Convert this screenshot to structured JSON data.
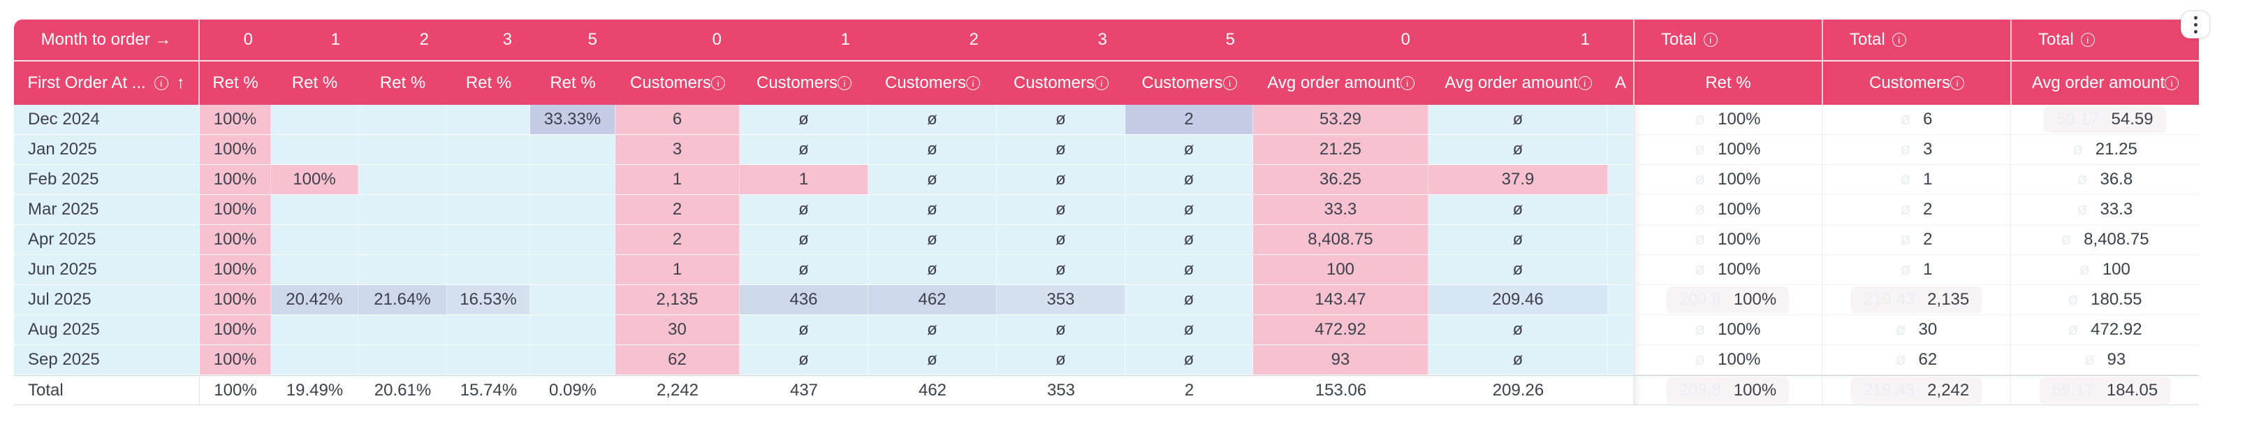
{
  "colors": {
    "accent": "#e8466e",
    "cell_pink": "#f8c1cf",
    "cell_cyan": "#e0f2f9",
    "cell_lavender": "#c5cce5",
    "cell_steel_blue": "#cdd9ea",
    "text": "#3d3f4a",
    "ghost_text": "#ebedf2"
  },
  "menu": {
    "icon": "kebab-menu-icon"
  },
  "header": {
    "corner_top": "Month to order →",
    "corner_bottom": "First Order At ...",
    "corner_sort": "↑",
    "columns": [
      {
        "month": "0",
        "metric": "Ret %",
        "info": false
      },
      {
        "month": "1",
        "metric": "Ret %",
        "info": false
      },
      {
        "month": "2",
        "metric": "Ret %",
        "info": false
      },
      {
        "month": "3",
        "metric": "Ret %",
        "info": false
      },
      {
        "month": "5",
        "metric": "Ret %",
        "info": false
      },
      {
        "month": "0",
        "metric": "Customers",
        "info": true
      },
      {
        "month": "1",
        "metric": "Customers",
        "info": true
      },
      {
        "month": "2",
        "metric": "Customers",
        "info": true
      },
      {
        "month": "3",
        "metric": "Customers",
        "info": true
      },
      {
        "month": "5",
        "metric": "Customers",
        "info": true
      },
      {
        "month": "0",
        "metric": "Avg order amount",
        "info": true
      },
      {
        "month": "1",
        "metric": "Avg order amount",
        "info": true
      },
      {
        "month": "",
        "metric": "A",
        "info": false
      }
    ],
    "pinned": [
      {
        "group": "Total",
        "group_info": true,
        "metric": "Ret %",
        "info": false
      },
      {
        "group": "Total",
        "group_info": true,
        "metric": "Customers",
        "info": true
      },
      {
        "group": "Total",
        "group_info": true,
        "metric": "Avg order amount",
        "info": true
      }
    ]
  },
  "rows": [
    {
      "label": "Dec 2024",
      "total_row": false,
      "cells": [
        {
          "v": "100%",
          "bg": "pink"
        },
        {
          "v": "",
          "bg": "cyan"
        },
        {
          "v": "",
          "bg": "cyan"
        },
        {
          "v": "",
          "bg": "cyan"
        },
        {
          "v": "33.33%",
          "bg": "lav"
        },
        {
          "v": "6",
          "bg": "pink"
        },
        {
          "v": "ø",
          "bg": "cyan"
        },
        {
          "v": "ø",
          "bg": "cyan"
        },
        {
          "v": "ø",
          "bg": "cyan"
        },
        {
          "v": "2",
          "bg": "lav"
        },
        {
          "v": "53.29",
          "bg": "pink"
        },
        {
          "v": "ø",
          "bg": "cyan"
        },
        {
          "v": "",
          "bg": "cyan"
        }
      ],
      "pinned": [
        {
          "ghost": "ø",
          "v": "100%",
          "flash": false
        },
        {
          "ghost": "ø",
          "v": "6",
          "flash": false
        },
        {
          "ghost": "59.17",
          "v": "54.59",
          "flash": true
        }
      ]
    },
    {
      "label": "Jan 2025",
      "total_row": false,
      "cells": [
        {
          "v": "100%",
          "bg": "pink"
        },
        {
          "v": "",
          "bg": "cyan"
        },
        {
          "v": "",
          "bg": "cyan"
        },
        {
          "v": "",
          "bg": "cyan"
        },
        {
          "v": "",
          "bg": "cyan"
        },
        {
          "v": "3",
          "bg": "pink"
        },
        {
          "v": "ø",
          "bg": "cyan"
        },
        {
          "v": "ø",
          "bg": "cyan"
        },
        {
          "v": "ø",
          "bg": "cyan"
        },
        {
          "v": "ø",
          "bg": "cyan"
        },
        {
          "v": "21.25",
          "bg": "pink"
        },
        {
          "v": "ø",
          "bg": "cyan"
        },
        {
          "v": "",
          "bg": "cyan"
        }
      ],
      "pinned": [
        {
          "ghost": "ø",
          "v": "100%",
          "flash": false
        },
        {
          "ghost": "ø",
          "v": "3",
          "flash": false
        },
        {
          "ghost": "ø",
          "v": "21.25",
          "flash": false
        }
      ]
    },
    {
      "label": "Feb 2025",
      "total_row": false,
      "cells": [
        {
          "v": "100%",
          "bg": "pink"
        },
        {
          "v": "100%",
          "bg": "pink"
        },
        {
          "v": "",
          "bg": "cyan"
        },
        {
          "v": "",
          "bg": "cyan"
        },
        {
          "v": "",
          "bg": "cyan"
        },
        {
          "v": "1",
          "bg": "pink"
        },
        {
          "v": "1",
          "bg": "pink"
        },
        {
          "v": "ø",
          "bg": "cyan"
        },
        {
          "v": "ø",
          "bg": "cyan"
        },
        {
          "v": "ø",
          "bg": "cyan"
        },
        {
          "v": "36.25",
          "bg": "pink"
        },
        {
          "v": "37.9",
          "bg": "pink"
        },
        {
          "v": "",
          "bg": "cyan"
        }
      ],
      "pinned": [
        {
          "ghost": "ø",
          "v": "100%",
          "flash": false
        },
        {
          "ghost": "ø",
          "v": "1",
          "flash": false
        },
        {
          "ghost": "ø",
          "v": "36.8",
          "flash": false
        }
      ]
    },
    {
      "label": "Mar 2025",
      "total_row": false,
      "cells": [
        {
          "v": "100%",
          "bg": "pink"
        },
        {
          "v": "",
          "bg": "cyan"
        },
        {
          "v": "",
          "bg": "cyan"
        },
        {
          "v": "",
          "bg": "cyan"
        },
        {
          "v": "",
          "bg": "cyan"
        },
        {
          "v": "2",
          "bg": "pink"
        },
        {
          "v": "ø",
          "bg": "cyan"
        },
        {
          "v": "ø",
          "bg": "cyan"
        },
        {
          "v": "ø",
          "bg": "cyan"
        },
        {
          "v": "ø",
          "bg": "cyan"
        },
        {
          "v": "33.3",
          "bg": "pink"
        },
        {
          "v": "ø",
          "bg": "cyan"
        },
        {
          "v": "",
          "bg": "cyan"
        }
      ],
      "pinned": [
        {
          "ghost": "ø",
          "v": "100%",
          "flash": false
        },
        {
          "ghost": "ø",
          "v": "2",
          "flash": false
        },
        {
          "ghost": "ø",
          "v": "33.3",
          "flash": false
        }
      ]
    },
    {
      "label": "Apr 2025",
      "total_row": false,
      "cells": [
        {
          "v": "100%",
          "bg": "pink"
        },
        {
          "v": "",
          "bg": "cyan"
        },
        {
          "v": "",
          "bg": "cyan"
        },
        {
          "v": "",
          "bg": "cyan"
        },
        {
          "v": "",
          "bg": "cyan"
        },
        {
          "v": "2",
          "bg": "pink"
        },
        {
          "v": "ø",
          "bg": "cyan"
        },
        {
          "v": "ø",
          "bg": "cyan"
        },
        {
          "v": "ø",
          "bg": "cyan"
        },
        {
          "v": "ø",
          "bg": "cyan"
        },
        {
          "v": "8,408.75",
          "bg": "pink"
        },
        {
          "v": "ø",
          "bg": "cyan"
        },
        {
          "v": "",
          "bg": "cyan"
        }
      ],
      "pinned": [
        {
          "ghost": "ø",
          "v": "100%",
          "flash": false
        },
        {
          "ghost": "ø",
          "v": "2",
          "flash": false
        },
        {
          "ghost": "ø",
          "v": "8,408.75",
          "flash": false
        }
      ]
    },
    {
      "label": "Jun 2025",
      "total_row": false,
      "cells": [
        {
          "v": "100%",
          "bg": "pink"
        },
        {
          "v": "",
          "bg": "cyan"
        },
        {
          "v": "",
          "bg": "cyan"
        },
        {
          "v": "",
          "bg": "cyan"
        },
        {
          "v": "",
          "bg": "cyan"
        },
        {
          "v": "1",
          "bg": "pink"
        },
        {
          "v": "ø",
          "bg": "cyan"
        },
        {
          "v": "ø",
          "bg": "cyan"
        },
        {
          "v": "ø",
          "bg": "cyan"
        },
        {
          "v": "ø",
          "bg": "cyan"
        },
        {
          "v": "100",
          "bg": "pink"
        },
        {
          "v": "ø",
          "bg": "cyan"
        },
        {
          "v": "",
          "bg": "cyan"
        }
      ],
      "pinned": [
        {
          "ghost": "ø",
          "v": "100%",
          "flash": false
        },
        {
          "ghost": "ø",
          "v": "1",
          "flash": false
        },
        {
          "ghost": "ø",
          "v": "100",
          "flash": false
        }
      ]
    },
    {
      "label": "Jul 2025",
      "total_row": false,
      "cells": [
        {
          "v": "100%",
          "bg": "pink"
        },
        {
          "v": "20.42%",
          "bg": "steel"
        },
        {
          "v": "21.64%",
          "bg": "steel"
        },
        {
          "v": "16.53%",
          "bg": "steel2"
        },
        {
          "v": "",
          "bg": "cyan"
        },
        {
          "v": "2,135",
          "bg": "pink"
        },
        {
          "v": "436",
          "bg": "steel"
        },
        {
          "v": "462",
          "bg": "steel"
        },
        {
          "v": "353",
          "bg": "steel2"
        },
        {
          "v": "ø",
          "bg": "cyan"
        },
        {
          "v": "143.47",
          "bg": "pink"
        },
        {
          "v": "209.46",
          "bg": "steel3"
        },
        {
          "v": "",
          "bg": "cyan"
        }
      ],
      "pinned": [
        {
          "ghost": "209.8",
          "v": "100%",
          "flash": true
        },
        {
          "ghost": "219.43",
          "v": "2,135",
          "flash": true
        },
        {
          "ghost": "ø",
          "v": "180.55",
          "flash": false
        }
      ]
    },
    {
      "label": "Aug 2025",
      "total_row": false,
      "cells": [
        {
          "v": "100%",
          "bg": "pink"
        },
        {
          "v": "",
          "bg": "cyan"
        },
        {
          "v": "",
          "bg": "cyan"
        },
        {
          "v": "",
          "bg": "cyan"
        },
        {
          "v": "",
          "bg": "cyan"
        },
        {
          "v": "30",
          "bg": "pink"
        },
        {
          "v": "ø",
          "bg": "cyan"
        },
        {
          "v": "ø",
          "bg": "cyan"
        },
        {
          "v": "ø",
          "bg": "cyan"
        },
        {
          "v": "ø",
          "bg": "cyan"
        },
        {
          "v": "472.92",
          "bg": "pink"
        },
        {
          "v": "ø",
          "bg": "cyan"
        },
        {
          "v": "",
          "bg": "cyan"
        }
      ],
      "pinned": [
        {
          "ghost": "ø",
          "v": "100%",
          "flash": false
        },
        {
          "ghost": "ø",
          "v": "30",
          "flash": false
        },
        {
          "ghost": "ø",
          "v": "472.92",
          "flash": false
        }
      ]
    },
    {
      "label": "Sep 2025",
      "total_row": false,
      "cells": [
        {
          "v": "100%",
          "bg": "pink"
        },
        {
          "v": "",
          "bg": "cyan"
        },
        {
          "v": "",
          "bg": "cyan"
        },
        {
          "v": "",
          "bg": "cyan"
        },
        {
          "v": "",
          "bg": "cyan"
        },
        {
          "v": "62",
          "bg": "pink"
        },
        {
          "v": "ø",
          "bg": "cyan"
        },
        {
          "v": "ø",
          "bg": "cyan"
        },
        {
          "v": "ø",
          "bg": "cyan"
        },
        {
          "v": "ø",
          "bg": "cyan"
        },
        {
          "v": "93",
          "bg": "pink"
        },
        {
          "v": "ø",
          "bg": "cyan"
        },
        {
          "v": "",
          "bg": "cyan"
        }
      ],
      "pinned": [
        {
          "ghost": "ø",
          "v": "100%",
          "flash": false
        },
        {
          "ghost": "ø",
          "v": "62",
          "flash": false
        },
        {
          "ghost": "ø",
          "v": "93",
          "flash": false
        }
      ]
    },
    {
      "label": "Total",
      "total_row": true,
      "cells": [
        {
          "v": "100%",
          "bg": "white"
        },
        {
          "v": "19.49%",
          "bg": "white"
        },
        {
          "v": "20.61%",
          "bg": "white"
        },
        {
          "v": "15.74%",
          "bg": "white"
        },
        {
          "v": "0.09%",
          "bg": "white"
        },
        {
          "v": "2,242",
          "bg": "white"
        },
        {
          "v": "437",
          "bg": "white"
        },
        {
          "v": "462",
          "bg": "white"
        },
        {
          "v": "353",
          "bg": "white"
        },
        {
          "v": "2",
          "bg": "white"
        },
        {
          "v": "153.06",
          "bg": "white"
        },
        {
          "v": "209.26",
          "bg": "white"
        },
        {
          "v": "",
          "bg": "white"
        }
      ],
      "pinned": [
        {
          "ghost": "209.8",
          "v": "100%",
          "flash": true
        },
        {
          "ghost": "219.43",
          "v": "2,242",
          "flash": true
        },
        {
          "ghost": "59.17",
          "v": "184.05",
          "flash": true
        }
      ]
    }
  ]
}
